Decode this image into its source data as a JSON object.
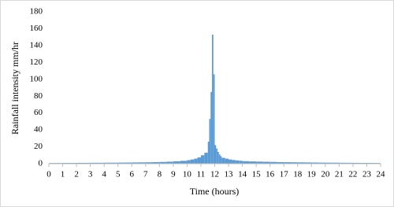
{
  "chart_data": {
    "type": "histogram",
    "x_label": "Time (hours)",
    "y_label": "Rainfall intensity mm/hr",
    "color": "#5b9bd5",
    "bins": [
      0,
      0.5,
      1,
      1.5,
      2,
      2.5,
      3,
      3.5,
      4,
      4.5,
      5,
      5.5,
      6,
      6.5,
      7,
      7.5,
      8,
      8.5,
      9,
      9.5,
      10,
      10.25,
      10.5,
      10.75,
      11,
      11.25,
      11.5,
      11.6,
      11.7,
      11.8,
      11.9,
      12,
      12.1,
      12.2,
      12.3,
      12.4,
      12.5,
      12.75,
      13,
      13.25,
      13.5,
      13.75,
      14,
      14.5,
      15,
      15.5,
      16,
      16.5,
      17,
      17.5,
      18,
      18.5,
      19,
      19.5,
      20,
      20.5,
      21,
      21.5,
      22,
      22.5,
      23,
      23.5,
      24
    ],
    "values": [
      0.8,
      0.8,
      0.9,
      0.9,
      1,
      1,
      1.1,
      1.1,
      1.2,
      1.2,
      1.3,
      1.4,
      1.5,
      1.6,
      1.7,
      1.9,
      2.1,
      2.4,
      2.8,
      3.4,
      4.2,
      5,
      6,
      7.5,
      10,
      13,
      26,
      53,
      85,
      153,
      106,
      22,
      18,
      14,
      11,
      9,
      7,
      6,
      5,
      4.4,
      3.9,
      3.5,
      3,
      2.7,
      2.5,
      2.3,
      2.1,
      1.9,
      1.8,
      1.7,
      1.6,
      1.5,
      1.4,
      1.3,
      1.25,
      1.2,
      1.1,
      1.05,
      1,
      0.95,
      0.9,
      0.85
    ],
    "xlim": [
      0,
      24
    ],
    "xticks": [
      0,
      1,
      2,
      3,
      4,
      5,
      6,
      7,
      8,
      9,
      10,
      11,
      12,
      13,
      14,
      15,
      16,
      17,
      18,
      19,
      20,
      21,
      22,
      23,
      24
    ],
    "ylim": [
      0,
      180
    ],
    "yticks": [
      0,
      20,
      40,
      60,
      80,
      100,
      120,
      140,
      160,
      180
    ]
  }
}
